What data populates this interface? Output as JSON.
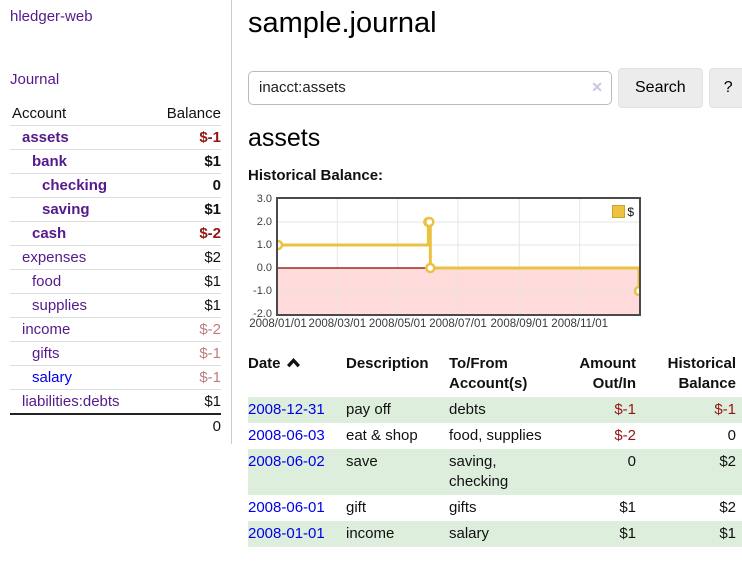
{
  "app": {
    "title": "hledger-web"
  },
  "sidebar": {
    "journal_link": "Journal",
    "accounts_table": {
      "headers": {
        "account": "Account",
        "balance": "Balance"
      },
      "rows": [
        {
          "account": "assets",
          "balance": "$-1"
        },
        {
          "account": "bank",
          "balance": "$1"
        },
        {
          "account": "checking",
          "balance": "0"
        },
        {
          "account": "saving",
          "balance": "$1"
        },
        {
          "account": "cash",
          "balance": "$-2"
        },
        {
          "account": "expenses",
          "balance": "$2"
        },
        {
          "account": "food",
          "balance": "$1"
        },
        {
          "account": "supplies",
          "balance": "$1"
        },
        {
          "account": "income",
          "balance": "$-2"
        },
        {
          "account": "gifts",
          "balance": "$-1"
        },
        {
          "account": "salary",
          "balance": "$-1"
        },
        {
          "account": "liabilities:debts",
          "balance": "$1"
        }
      ],
      "total": "0"
    }
  },
  "header": {
    "title": "sample.journal"
  },
  "search": {
    "value": "inacct:assets",
    "clear_icon": "✕",
    "button_label": "Search",
    "help_label": "?"
  },
  "account_page": {
    "heading": "assets",
    "chart_title": "Historical Balance:"
  },
  "chart_data": {
    "type": "line",
    "title": "Historical Balance:",
    "series": [
      {
        "name": "$",
        "style": "step",
        "color": "#e9c242",
        "points": [
          {
            "date": "2008-01-01",
            "value": 1
          },
          {
            "date": "2008-06-01",
            "value": 2
          },
          {
            "date": "2008-06-02",
            "value": 2
          },
          {
            "date": "2008-06-03",
            "value": 0
          },
          {
            "date": "2008-12-31",
            "value": -1
          }
        ]
      }
    ],
    "ylim": [
      -2,
      3
    ],
    "y_ticks": [
      3,
      2,
      1,
      0,
      -1,
      -2
    ],
    "x_ticks": [
      {
        "date": "2008-01-01",
        "label": "2008/01/01"
      },
      {
        "date": "2008-03-01",
        "label": "2008/03/01"
      },
      {
        "date": "2008-05-01",
        "label": "2008/05/01"
      },
      {
        "date": "2008-07-01",
        "label": "2008/07/01"
      },
      {
        "date": "2008-09-01",
        "label": "2008/09/01"
      },
      {
        "date": "2008-11-01",
        "label": "2008/11/01"
      }
    ],
    "xrange": [
      "2008-01-01",
      "2008-12-31"
    ],
    "grid": true,
    "negative_region_color": "#ffdbdb",
    "zero_line_color": "#8b0000",
    "grid_color": "#e6e6e6",
    "legend": {
      "label": "$",
      "position": "top-right"
    }
  },
  "register": {
    "headers": {
      "date": "Date",
      "description": "Description",
      "account": "To/From Account(s)",
      "amount": "Amount Out/In",
      "balance": "Historical Balance"
    },
    "rows": [
      {
        "date": "2008-12-31",
        "description": "pay off",
        "account": "debts",
        "amount": "$-1",
        "balance": "$-1"
      },
      {
        "date": "2008-06-03",
        "description": "eat & shop",
        "account": "food, supplies",
        "amount": "$-2",
        "balance": "0"
      },
      {
        "date": "2008-06-02",
        "description": "save",
        "account": "saving, checking",
        "amount": "0",
        "balance": "$2"
      },
      {
        "date": "2008-06-01",
        "description": "gift",
        "account": "gifts",
        "amount": "$1",
        "balance": "$2"
      },
      {
        "date": "2008-01-01",
        "description": "income",
        "account": "salary",
        "amount": "$1",
        "balance": "$1"
      }
    ]
  }
}
